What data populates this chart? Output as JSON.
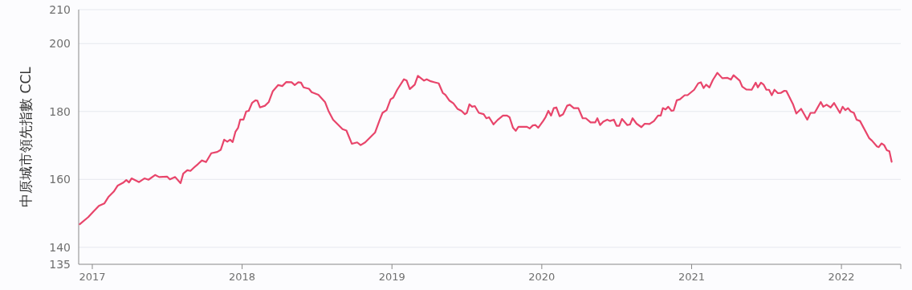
{
  "chart_data": {
    "type": "line",
    "ylabel": "中原城市領先指數 CCL",
    "color": "#e8456b",
    "grid": "y",
    "xlim": [
      2016.909,
      2022.396
    ],
    "ylim": [
      135,
      210
    ],
    "xticks": [
      2017,
      2018,
      2019,
      2020,
      2021,
      2022
    ],
    "yticks": [
      135,
      140,
      160,
      180,
      200,
      210
    ],
    "x": [
      2016.916,
      2016.973,
      2017.009,
      2017.044,
      2017.08,
      2017.107,
      2017.143,
      2017.17,
      2017.205,
      2017.227,
      2017.245,
      2017.262,
      2017.312,
      2017.348,
      2017.375,
      2017.419,
      2017.446,
      2017.5,
      2017.518,
      2017.553,
      2017.589,
      2017.607,
      2017.634,
      2017.655,
      2017.679,
      2017.705,
      2017.732,
      2017.759,
      2017.794,
      2017.834,
      2017.857,
      2017.88,
      2017.901,
      2017.92,
      2017.937,
      2017.955,
      2017.973,
      2017.987,
      2018.009,
      2018.027,
      2018.044,
      2018.066,
      2018.089,
      2018.102,
      2018.119,
      2018.152,
      2018.178,
      2018.205,
      2018.241,
      2018.268,
      2018.295,
      2018.33,
      2018.351,
      2018.375,
      2018.393,
      2018.41,
      2018.446,
      2018.464,
      2018.509,
      2018.553,
      2018.576,
      2018.607,
      2018.634,
      2018.67,
      2018.696,
      2018.732,
      2018.768,
      2018.791,
      2018.821,
      2018.848,
      2018.887,
      2018.919,
      2018.937,
      2018.964,
      2018.991,
      2019.009,
      2019.035,
      2019.08,
      2019.098,
      2019.119,
      2019.152,
      2019.173,
      2019.214,
      2019.232,
      2019.259,
      2019.285,
      2019.312,
      2019.339,
      2019.357,
      2019.384,
      2019.41,
      2019.437,
      2019.464,
      2019.487,
      2019.5,
      2019.517,
      2019.535,
      2019.553,
      2019.58,
      2019.612,
      2019.63,
      2019.648,
      2019.678,
      2019.705,
      2019.741,
      2019.768,
      2019.785,
      2019.808,
      2019.826,
      2019.844,
      2019.901,
      2019.919,
      2019.94,
      2019.958,
      2019.976,
      2020.009,
      2020.026,
      2020.044,
      2020.062,
      2020.08,
      2020.097,
      2020.119,
      2020.142,
      2020.169,
      2020.187,
      2020.214,
      2020.244,
      2020.273,
      2020.294,
      2020.326,
      2020.357,
      2020.371,
      2020.389,
      2020.41,
      2020.437,
      2020.455,
      2020.481,
      2020.499,
      2020.517,
      2020.535,
      2020.571,
      2020.589,
      2020.606,
      2020.633,
      2020.665,
      2020.687,
      2020.719,
      2020.749,
      2020.776,
      2020.794,
      2020.808,
      2020.826,
      2020.844,
      2020.866,
      2020.88,
      2020.901,
      2020.922,
      2020.954,
      2020.973,
      2021.017,
      2021.044,
      2021.062,
      2021.08,
      2021.097,
      2021.119,
      2021.142,
      2021.172,
      2021.205,
      2021.24,
      2021.262,
      2021.28,
      2021.321,
      2021.338,
      2021.365,
      2021.401,
      2021.428,
      2021.442,
      2021.463,
      2021.481,
      2021.499,
      2021.517,
      2021.535,
      2021.553,
      2021.576,
      2021.597,
      2021.619,
      2021.633,
      2021.678,
      2021.699,
      2021.731,
      2021.772,
      2021.794,
      2021.821,
      2021.862,
      2021.879,
      2021.901,
      2021.928,
      2021.951,
      2021.99,
      2022.008,
      2022.026,
      2022.044,
      2022.062,
      2022.083,
      2022.101,
      2022.124,
      2022.186,
      2022.204,
      2022.237,
      2022.249,
      2022.267,
      2022.285,
      2022.303,
      2022.32,
      2022.335
    ],
    "values": [
      146.8,
      148.9,
      150.6,
      152.2,
      152.9,
      154.8,
      156.4,
      158.2,
      159.0,
      159.8,
      159.1,
      160.3,
      159.2,
      160.3,
      159.9,
      161.3,
      160.7,
      160.8,
      160.0,
      160.7,
      158.9,
      161.7,
      162.7,
      162.5,
      163.5,
      164.5,
      165.6,
      165.1,
      167.7,
      168.1,
      168.7,
      171.7,
      171.1,
      171.7,
      171.0,
      174.0,
      175.2,
      177.6,
      177.6,
      180.0,
      180.2,
      182.5,
      183.3,
      183.2,
      181.2,
      181.7,
      182.8,
      186.0,
      187.8,
      187.5,
      188.7,
      188.6,
      187.8,
      188.6,
      188.5,
      187.1,
      186.7,
      185.7,
      184.9,
      182.8,
      180.2,
      177.6,
      176.4,
      174.8,
      174.4,
      170.5,
      170.9,
      170.1,
      170.9,
      172.1,
      173.8,
      177.6,
      179.6,
      180.4,
      183.6,
      184.1,
      186.4,
      189.5,
      189.1,
      186.6,
      187.9,
      190.5,
      189.1,
      189.5,
      188.9,
      188.6,
      188.3,
      185.5,
      184.9,
      183.2,
      182.4,
      180.8,
      180.2,
      179.2,
      179.6,
      182.1,
      181.4,
      181.6,
      179.6,
      179.2,
      178.0,
      178.3,
      176.2,
      177.5,
      178.8,
      178.8,
      178.3,
      175.2,
      174.3,
      175.5,
      175.5,
      175.0,
      175.9,
      176.0,
      175.2,
      177.2,
      178.4,
      180.2,
      178.8,
      181.0,
      181.2,
      178.6,
      179.2,
      181.7,
      182.0,
      181.0,
      181.0,
      178.0,
      178.0,
      176.8,
      176.8,
      178.0,
      176.0,
      177.0,
      177.6,
      177.2,
      177.6,
      175.8,
      175.8,
      177.8,
      176.0,
      176.2,
      178.0,
      176.4,
      175.4,
      176.4,
      176.3,
      177.2,
      178.8,
      178.8,
      181.0,
      180.6,
      181.4,
      180.2,
      180.3,
      183.3,
      183.6,
      184.8,
      184.8,
      186.4,
      188.3,
      188.6,
      186.9,
      187.9,
      187.1,
      189.3,
      191.4,
      189.8,
      189.9,
      189.4,
      190.7,
      189.1,
      187.3,
      186.5,
      186.4,
      188.5,
      187.1,
      188.5,
      187.9,
      186.4,
      186.4,
      184.8,
      186.4,
      185.4,
      185.5,
      186.1,
      186.0,
      182.0,
      179.4,
      180.8,
      177.6,
      179.6,
      179.6,
      182.8,
      181.4,
      182.0,
      181.2,
      182.5,
      179.6,
      181.4,
      180.4,
      181.0,
      180.0,
      179.6,
      177.6,
      177.2,
      172.1,
      171.4,
      169.7,
      169.5,
      170.6,
      170.1,
      168.6,
      168.3,
      165.2
    ]
  }
}
